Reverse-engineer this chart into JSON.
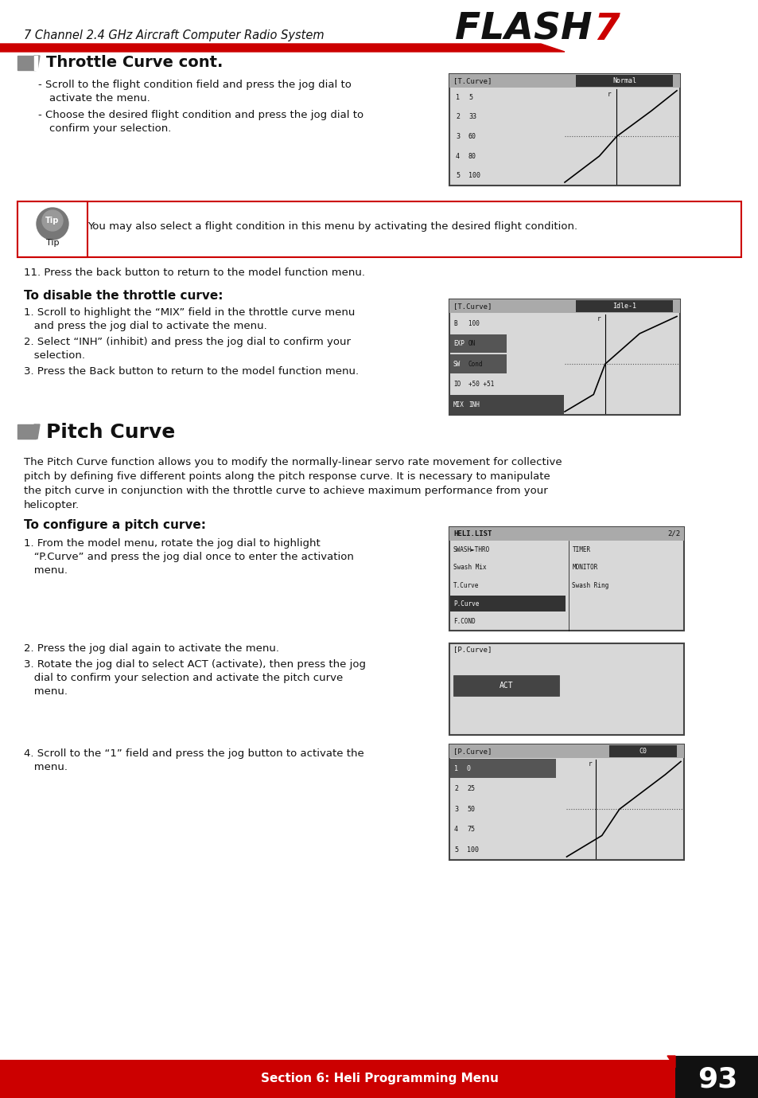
{
  "page_bg": "#ffffff",
  "header_text": "7 Channel 2.4 GHz Aircraft Computer Radio System",
  "red_color": "#cc0000",
  "dark_color": "#111111",
  "gray_marker": "#888888",
  "lcd_bg": "#d8d8d8",
  "lcd_border": "#444444",
  "lcd_dark_row": "#555555",
  "section1_title": "Throttle Curve cont.",
  "tip_text": "You may also select a flight condition in this menu by activating the desired flight condition.",
  "step11": "11. Press the back button to return to the model function menu.",
  "disable_title": "To disable the throttle curve:",
  "dis1a": "1. Scroll to highlight the “MIX” field in the throttle curve menu",
  "dis1b": "   and press the jog dial to activate the menu.",
  "dis2a": "2. Select “INH” (inhibit) and press the jog dial to confirm your",
  "dis2b": "   selection.",
  "dis3": "3. Press the Back button to return to the model function menu.",
  "section2_title": "Pitch Curve",
  "pitch_p1": "The Pitch Curve function allows you to modify the normally-linear servo rate movement for collective",
  "pitch_p2": "pitch by defining five different points along the pitch response curve. It is necessary to manipulate",
  "pitch_p3": "the pitch curve in conjunction with the throttle curve to achieve maximum performance from your",
  "pitch_p4": "helicopter.",
  "config_title": "To configure a pitch curve:",
  "cfg1a": "1. From the model menu, rotate the jog dial to highlight",
  "cfg1b": "   “P.Curve” and press the jog dial once to enter the activation",
  "cfg1c": "   menu.",
  "cfg2": "2. Press the jog dial again to activate the menu.",
  "cfg3a": "3. Rotate the jog dial to select ACT (activate), then press the jog",
  "cfg3b": "   dial to confirm your selection and activate the pitch curve",
  "cfg3c": "   menu.",
  "cfg4a": "4. Scroll to the “1” field and press the jog button to activate the",
  "cfg4b": "   menu.",
  "footer_text": "Section 6: Heli Programming Menu",
  "page_num": "93"
}
